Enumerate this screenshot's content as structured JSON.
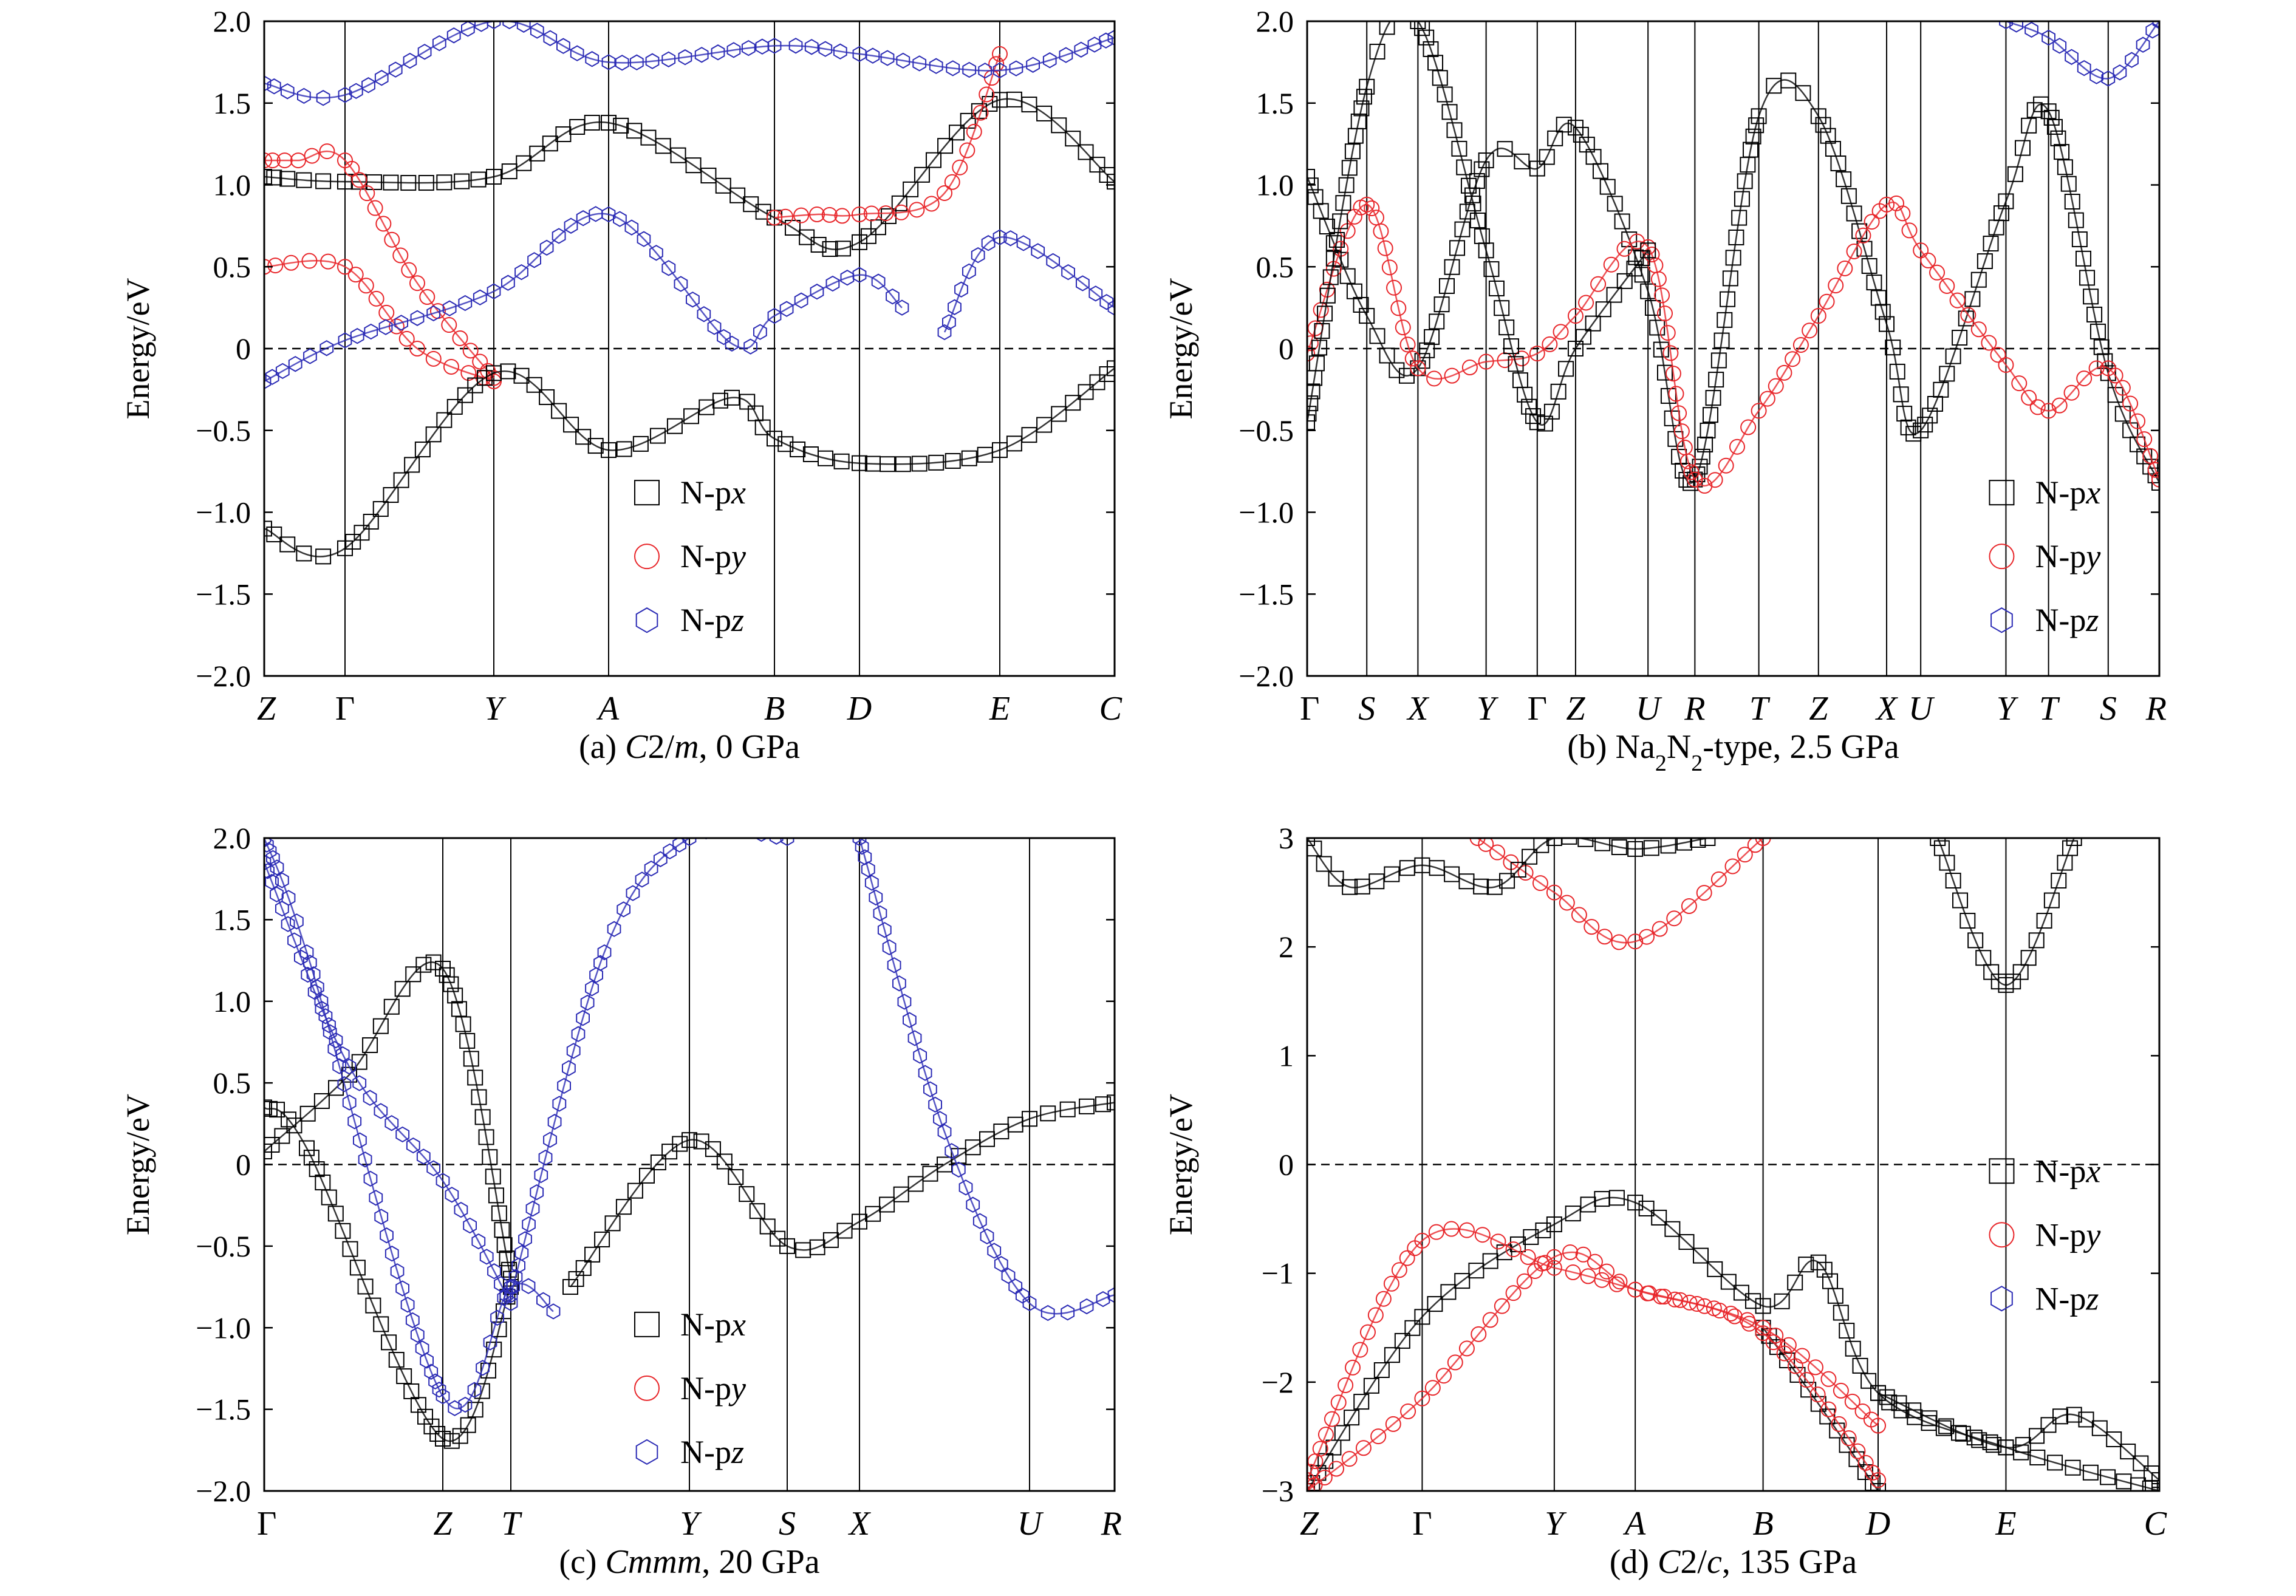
{
  "chart_data": [
    {
      "type": "line",
      "subtitle": "(a) C2/m, 0 GPa",
      "subtitle_parts": [
        [
          "(a) ",
          ""
        ],
        [
          "C",
          "i"
        ],
        [
          "2/",
          ""
        ],
        [
          "m",
          "i"
        ],
        [
          ", 0 GPa",
          ""
        ]
      ],
      "ylabel": "Energy/eV",
      "xlabel": "",
      "ylim": [
        -2.0,
        2.0
      ],
      "yticks": [
        "2.0",
        "1.5",
        "1.0",
        "0.5",
        "0",
        "-0.5",
        "-1.0",
        "-1.5",
        "-2.0"
      ],
      "ytick_values": [
        2.0,
        1.5,
        1.0,
        0.5,
        0,
        -0.5,
        -1.0,
        -1.5,
        -2.0
      ],
      "kpath": [
        "Z",
        "Γ",
        "Y",
        "A",
        "B",
        "D",
        "E",
        "C"
      ],
      "kpos": [
        0,
        0.095,
        0.27,
        0.405,
        0.6,
        0.7,
        0.865,
        1
      ],
      "fermi_level": 0,
      "grid": false,
      "legend": {
        "entries": [
          "N-px",
          "N-py",
          "N-pz"
        ],
        "placement": "lower-center"
      },
      "series": [
        {
          "name": "N-px",
          "color": "#000000",
          "marker": "square",
          "x": [
            0,
            0.095,
            0.27,
            0.405,
            0.6,
            0.7,
            0.865,
            1
          ],
          "y": [
            1.05,
            1.02,
            1.05,
            1.38,
            0.8,
            0.65,
            1.52,
            1.02
          ]
        },
        {
          "name": "N-py",
          "color": "#e8262a",
          "marker": "circle",
          "x": [
            0,
            0.04,
            0.095,
            0.18,
            0.27
          ],
          "y": [
            1.15,
            1.15,
            1.15,
            0.4,
            -0.18
          ]
        },
        {
          "name": "N-py",
          "color": "#e8262a",
          "marker": "circle",
          "x": [
            0,
            0.095,
            0.18,
            0.27
          ],
          "y": [
            0.5,
            0.5,
            0.0,
            -0.2
          ]
        },
        {
          "name": "N-py",
          "color": "#e8262a",
          "marker": "circle",
          "x": [
            0.6,
            0.65,
            0.7,
            0.8,
            0.865
          ],
          "y": [
            0.8,
            0.82,
            0.82,
            0.95,
            1.8
          ]
        },
        {
          "name": "N-pz",
          "color": "#2b2bb5",
          "marker": "hexagon",
          "x": [
            0,
            0.095,
            0.27,
            0.405,
            0.55,
            0.6,
            0.7,
            0.75
          ],
          "y": [
            -0.2,
            0.05,
            0.35,
            0.82,
            0.03,
            0.2,
            0.45,
            0.25
          ]
        },
        {
          "name": "N-pz",
          "color": "#2b2bb5",
          "marker": "hexagon",
          "x": [
            0.8,
            0.865,
            1
          ],
          "y": [
            0.1,
            0.68,
            0.25
          ]
        },
        {
          "name": "N-pz",
          "color": "#2b2bb5",
          "marker": "hexagon",
          "x": [
            0,
            0.095,
            0.27,
            0.405,
            0.6,
            0.7,
            0.865,
            1
          ],
          "y": [
            1.62,
            1.55,
            2.0,
            1.75,
            1.85,
            1.8,
            1.7,
            1.9
          ]
        },
        {
          "name": "N-px",
          "color": "#000000",
          "marker": "square",
          "x": [
            0,
            0.095,
            0.27,
            0.405,
            0.55,
            0.6,
            0.7,
            0.865,
            1
          ],
          "y": [
            -1.1,
            -1.22,
            -0.15,
            -0.62,
            -0.3,
            -0.55,
            -0.7,
            -0.62,
            -0.12
          ]
        }
      ]
    },
    {
      "type": "line",
      "subtitle": "(b) Na2N2-type, 2.5 GPa",
      "subtitle_parts": [
        [
          "(b) Na",
          ""
        ],
        [
          "2",
          "sub"
        ],
        [
          "N",
          ""
        ],
        [
          "2",
          "sub"
        ],
        [
          "-type, 2.5 GPa",
          ""
        ]
      ],
      "ylabel": "Energy/eV",
      "xlabel": "",
      "ylim": [
        -2.0,
        2.0
      ],
      "yticks": [
        "2.0",
        "1.5",
        "1.0",
        "0.5",
        "0",
        "-0.5",
        "-1.0",
        "-1.5",
        "-2.0"
      ],
      "ytick_values": [
        2.0,
        1.5,
        1.0,
        0.5,
        0,
        -0.5,
        -1.0,
        -1.5,
        -2.0
      ],
      "kpath": [
        "Γ",
        "S",
        "X",
        "Y",
        "Γ",
        "Z",
        "U",
        "R",
        "T",
        "Z",
        "X",
        "U",
        "Y",
        "T",
        "S",
        "R"
      ],
      "kpos": [
        0,
        0.07,
        0.13,
        0.21,
        0.27,
        0.315,
        0.4,
        0.455,
        0.53,
        0.6,
        0.68,
        0.72,
        0.82,
        0.87,
        0.94,
        1
      ],
      "fermi_level": 0,
      "grid": false,
      "legend": {
        "entries": [
          "N-px",
          "N-py",
          "N-pz"
        ],
        "placement": "lower-right"
      },
      "series": [
        {
          "name": "N-px",
          "color": "#000000",
          "marker": "square",
          "x": [
            0,
            0.07,
            0.13,
            0.21,
            0.27,
            0.315,
            0.4,
            0.455,
            0.53,
            0.6,
            0.68,
            0.72,
            0.82,
            0.87,
            0.94,
            1
          ],
          "y": [
            1.05,
            0.2,
            -0.12,
            1.15,
            1.1,
            1.35,
            0.35,
            -0.8,
            1.42,
            1.42,
            0.15,
            -0.5,
            0.9,
            1.45,
            -0.15,
            -0.82
          ]
        },
        {
          "name": "N-py",
          "color": "#e8262a",
          "marker": "circle",
          "x": [
            0,
            0.07,
            0.13,
            0.21,
            0.27,
            0.315,
            0.4,
            0.455,
            0.53,
            0.6,
            0.68,
            0.72,
            0.82,
            0.87,
            0.94,
            1
          ],
          "y": [
            -0.03,
            0.88,
            -0.12,
            -0.08,
            -0.03,
            0.2,
            0.62,
            -0.8,
            -0.38,
            0.2,
            0.88,
            0.6,
            -0.1,
            -0.38,
            -0.12,
            -0.8
          ]
        },
        {
          "name": "N-px",
          "color": "#000000",
          "marker": "square",
          "x": [
            0,
            0.07,
            0.13,
            0.21,
            0.27,
            0.315,
            0.4
          ],
          "y": [
            -0.45,
            1.6,
            2.0,
            0.6,
            -0.45,
            0.0,
            0.6
          ]
        },
        {
          "name": "N-pz",
          "color": "#2b2bb5",
          "marker": "hexagon",
          "x": [
            0.82,
            0.87,
            0.94,
            1
          ],
          "y": [
            2.0,
            1.9,
            1.65,
            2.0
          ]
        }
      ]
    },
    {
      "type": "line",
      "subtitle": "(c) Cmmm, 20 GPa",
      "subtitle_parts": [
        [
          "(c) ",
          ""
        ],
        [
          "Cmmm",
          "i"
        ],
        [
          ", 20 GPa",
          ""
        ]
      ],
      "ylabel": "Energy/eV",
      "xlabel": "",
      "ylim": [
        -2.0,
        2.0
      ],
      "yticks": [
        "2.0",
        "1.5",
        "1.0",
        "0.5",
        "0",
        "-0.5",
        "-1.0",
        "-1.5",
        "-2.0"
      ],
      "ytick_values": [
        2.0,
        1.5,
        1.0,
        0.5,
        0,
        -0.5,
        -1.0,
        -1.5,
        -2.0
      ],
      "kpath": [
        "Γ",
        "Z",
        "T",
        "Y",
        "S",
        "X",
        "U",
        "R"
      ],
      "kpos": [
        0,
        0.21,
        0.29,
        0.5,
        0.615,
        0.7,
        0.9,
        1
      ],
      "fermi_level": 0,
      "grid": false,
      "legend": {
        "entries": [
          "N-px",
          "N-py",
          "N-pz"
        ],
        "placement": "lower-center"
      },
      "series": [
        {
          "name": "N-px",
          "color": "#000000",
          "marker": "square",
          "x": [
            0,
            0.1,
            0.21,
            0.29
          ],
          "y": [
            0.08,
            0.55,
            1.2,
            -0.7
          ]
        },
        {
          "name": "N-px",
          "color": "#000000",
          "marker": "square",
          "x": [
            0.36,
            0.5,
            0.615,
            0.7,
            0.8,
            0.9,
            1
          ],
          "y": [
            -0.75,
            0.15,
            -0.5,
            -0.35,
            0.0,
            0.28,
            0.38
          ]
        },
        {
          "name": "N-px",
          "color": "#000000",
          "marker": "square",
          "x": [
            0,
            0.05,
            0.21,
            0.29
          ],
          "y": [
            0.35,
            0.1,
            -1.68,
            -0.75
          ]
        },
        {
          "name": "N-pz",
          "color": "#2b2bb5",
          "marker": "hexagon",
          "x": [
            0,
            0.1,
            0.21,
            0.29
          ],
          "y": [
            1.85,
            0.6,
            -0.1,
            -0.85
          ]
        },
        {
          "name": "N-pz",
          "color": "#2b2bb5",
          "marker": "hexagon",
          "x": [
            0,
            0.05,
            0.21,
            0.29,
            0.34
          ],
          "y": [
            2.0,
            1.3,
            -1.42,
            -0.75,
            -0.9
          ]
        },
        {
          "name": "N-pz",
          "color": "#2b2bb5",
          "marker": "hexagon",
          "x": [
            0.29,
            0.4,
            0.5,
            0.615
          ],
          "y": [
            -0.8,
            1.3,
            2.0,
            2.0
          ]
        },
        {
          "name": "N-pz",
          "color": "#2b2bb5",
          "marker": "hexagon",
          "x": [
            0.7,
            0.8,
            0.9,
            1
          ],
          "y": [
            2.0,
            0.2,
            -0.85,
            -0.8
          ]
        }
      ]
    },
    {
      "type": "line",
      "subtitle": "(d) C2/c, 135 GPa",
      "subtitle_parts": [
        [
          "(d) ",
          ""
        ],
        [
          "C",
          "i"
        ],
        [
          "2/",
          ""
        ],
        [
          "c",
          "i"
        ],
        [
          ", 135 GPa",
          ""
        ]
      ],
      "ylabel": "Energy/eV",
      "xlabel": "",
      "ylim": [
        -3,
        3
      ],
      "yticks": [
        "3",
        "2",
        "1",
        "0",
        "-1",
        "-2",
        "-3"
      ],
      "ytick_values": [
        3,
        2,
        1,
        0,
        -1,
        -2,
        -3
      ],
      "kpath": [
        "Z",
        "Γ",
        "Y",
        "A",
        "B",
        "D",
        "E",
        "C"
      ],
      "kpos": [
        0,
        0.135,
        0.29,
        0.385,
        0.535,
        0.67,
        0.82,
        1
      ],
      "fermi_level": 0,
      "grid": false,
      "legend": {
        "entries": [
          "N-px",
          "N-py",
          "N-pz"
        ],
        "placement": "right"
      },
      "series": [
        {
          "name": "N-px",
          "color": "#000000",
          "marker": "square",
          "x": [
            0,
            0.135,
            0.29,
            0.385,
            0.535,
            0.6,
            0.67,
            0.82,
            1
          ],
          "y": [
            -3.0,
            -1.4,
            -0.55,
            -0.35,
            -1.3,
            -0.9,
            -2.1,
            -2.6,
            -3.0
          ]
        },
        {
          "name": "N-px",
          "color": "#000000",
          "marker": "square",
          "x": [
            0.535,
            0.6,
            0.67
          ],
          "y": [
            -1.5,
            -2.2,
            -3.0
          ]
        },
        {
          "name": "N-px",
          "color": "#000000",
          "marker": "square",
          "x": [
            0.67,
            0.82,
            0.9,
            1
          ],
          "y": [
            -2.1,
            -2.6,
            -2.3,
            -2.9
          ]
        },
        {
          "name": "N-py",
          "color": "#e8262a",
          "marker": "circle",
          "x": [
            0,
            0.135,
            0.29,
            0.385,
            0.535,
            0.67
          ],
          "y": [
            -2.9,
            -0.7,
            -0.95,
            -1.15,
            -1.5,
            -2.4
          ]
        },
        {
          "name": "N-py",
          "color": "#e8262a",
          "marker": "circle",
          "x": [
            0,
            0.135,
            0.29,
            0.385,
            0.535,
            0.67
          ],
          "y": [
            -3.0,
            -2.15,
            -0.85,
            -1.15,
            -1.55,
            -2.9
          ]
        },
        {
          "name": "N-py",
          "color": "#e8262a",
          "marker": "circle",
          "x": [
            0.2,
            0.29,
            0.385,
            0.535
          ],
          "y": [
            3.0,
            2.5,
            2.05,
            3.0
          ]
        },
        {
          "name": "N-px",
          "color": "#000000",
          "marker": "square",
          "x": [
            0,
            0.05,
            0.135,
            0.22,
            0.29,
            0.385,
            0.47
          ],
          "y": [
            3.0,
            2.55,
            2.75,
            2.55,
            3.0,
            2.9,
            3.0
          ]
        },
        {
          "name": "N-px",
          "color": "#000000",
          "marker": "square",
          "x": [
            0.74,
            0.82,
            0.9
          ],
          "y": [
            3.0,
            1.65,
            3.0
          ]
        }
      ]
    }
  ]
}
